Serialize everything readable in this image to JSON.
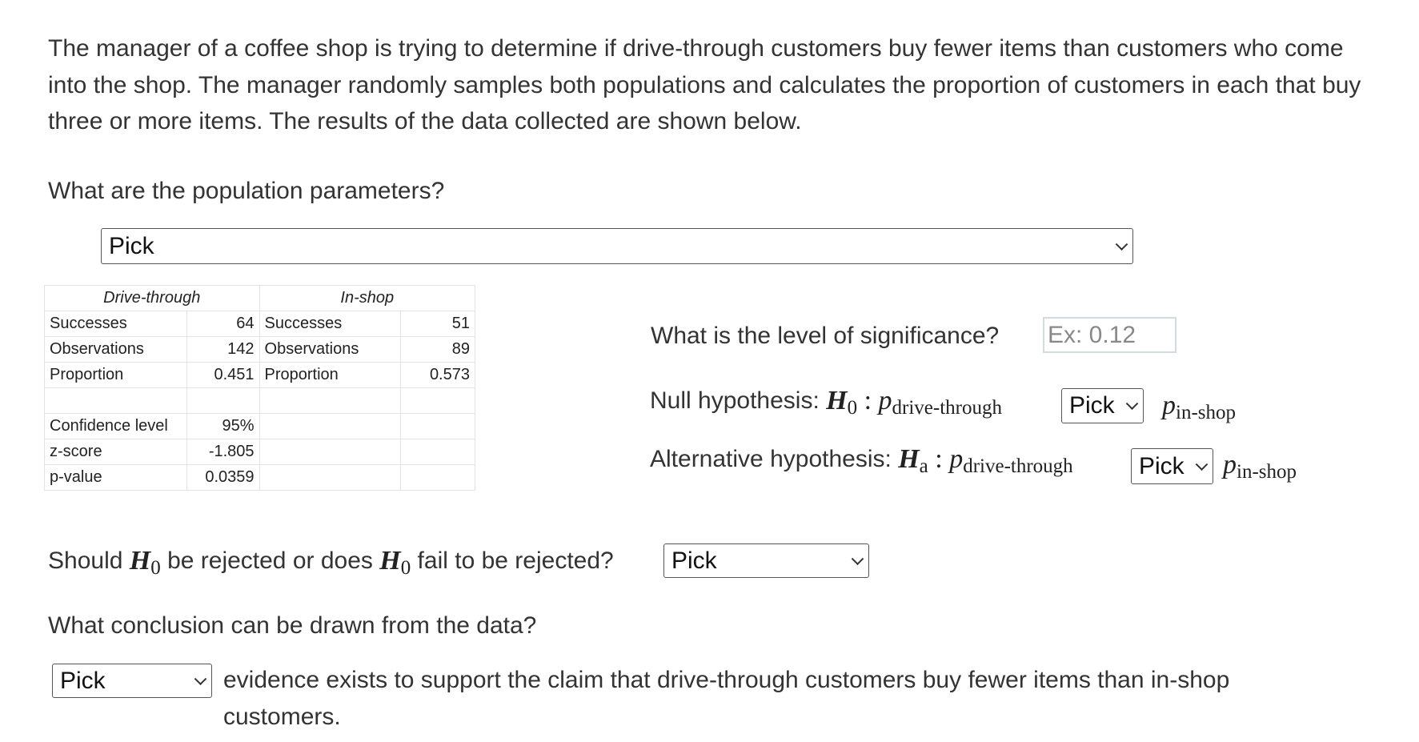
{
  "intro": "The manager of a coffee shop is trying to determine if drive-through customers buy fewer items than customers who come into the shop. The manager randomly samples both populations and calculates the proportion of customers in each that buy three or more items. The results of the data collected are shown below.",
  "q_params": "What are the population parameters?",
  "params_select": "Pick",
  "table": {
    "headers": [
      "Drive-through",
      "In-shop"
    ],
    "rows": [
      [
        "Successes",
        "64",
        "Successes",
        "51"
      ],
      [
        "Observations",
        "142",
        "Observations",
        "89"
      ],
      [
        "Proportion",
        "0.451",
        "Proportion",
        "0.573"
      ],
      [
        "",
        "",
        "",
        ""
      ],
      [
        "Confidence level",
        "95%",
        "",
        ""
      ],
      [
        "z-score",
        "-1.805",
        "",
        ""
      ],
      [
        "p-value",
        "0.0359",
        "",
        ""
      ]
    ]
  },
  "q_sig": "What is the level of significance?",
  "sig_placeholder": "Ex: 0.12",
  "null_label": "Null hypothesis:",
  "alt_label": "Alternative hypothesis:",
  "h": "H",
  "h0_sub": "0",
  "ha_sub": "a",
  "colon": ":",
  "p": "p",
  "sub_drive": "drive-through",
  "sub_shop": "in-shop",
  "null_select": "Pick",
  "alt_select": "Pick",
  "q_reject_1": "Should",
  "q_reject_2": "be rejected or does",
  "q_reject_3": "fail to be rejected?",
  "reject_select": "Pick",
  "q_conclusion": "What conclusion can be drawn from the data?",
  "conclusion_select": "Pick",
  "conclusion_text": "evidence exists to support the claim that drive-through customers buy fewer items than in-shop customers."
}
